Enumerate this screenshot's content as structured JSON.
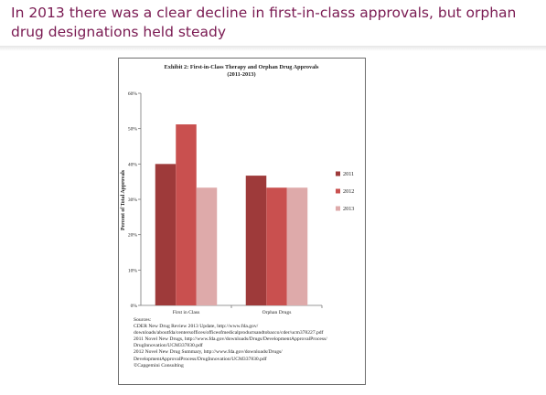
{
  "slide": {
    "title": "In 2013 there was a clear decline in first-in-class approvals,  but orphan drug designations held steady"
  },
  "chart_data": {
    "type": "bar",
    "title": "Exhibit 2: First-in-Class Therapy and Orphan Drug Approvals",
    "subtitle": "(2011-2013)",
    "ylabel": "Percent of Total Approvals",
    "xlabel": "",
    "categories": [
      "First in Class",
      "Orphan Drugs"
    ],
    "series": [
      {
        "name": "2011",
        "values": [
          40,
          36.7
        ],
        "color": "#9e3a3a"
      },
      {
        "name": "2012",
        "values": [
          51.2,
          33.3
        ],
        "color": "#c9504f"
      },
      {
        "name": "2013",
        "values": [
          33.3,
          33.3
        ],
        "color": "#deaaaa"
      }
    ],
    "ylim": [
      0,
      60
    ],
    "yticks": [
      0,
      10,
      20,
      30,
      40,
      50,
      60
    ],
    "ytick_labels": [
      "0%",
      "10%",
      "20%",
      "30%",
      "40%",
      "50%",
      "60%"
    ],
    "grid": false,
    "legend_position": "right"
  },
  "sources": {
    "heading": "Sources:",
    "lines": [
      "CDER New Drug Review 2013 Update, http://www.fda.gov/",
      "downloads/aboutfda/centersoffices/officeofmedicalproductsandtobacco/cder/ucm378227.pdf",
      "2011 Novel New Drugs, http://www.fda.gov/downloads/Drugs/DevelopmentApprovalProcess/",
      "DrugInnovation/UCM337830.pdf",
      "2012 Novel New Drug Summary, http://www.fda.gov/downloads/Drugs/",
      "DevelopmentApprovalProcess/DrugInnovation/UCM337830.pdf",
      "©Capgemini Consulting"
    ]
  }
}
